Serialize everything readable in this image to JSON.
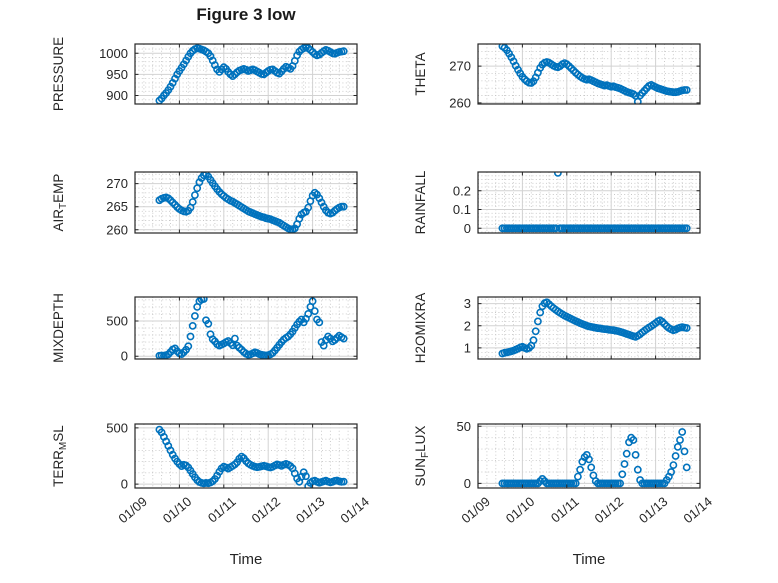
{
  "figure": {
    "title": "Figure 3 low"
  },
  "colors": {
    "marker": "#0072BD",
    "axis": "#262626",
    "grid": "#d2d2d2",
    "minor_grid": "#c7c7c7",
    "text": "#262626",
    "background": "#ffffff"
  },
  "chart_data": {
    "type": "scatter",
    "marker": "open-circle",
    "x_label": "Time",
    "xlim": [
      9,
      14
    ],
    "x_tick_values": [
      9,
      10,
      11,
      12,
      13,
      14
    ],
    "x_tick_labels": [
      "01/09",
      "01/10",
      "01/11",
      "01/12",
      "01/13",
      "01/14"
    ],
    "grid": "major-solid minor-dotted",
    "x": [
      9.55,
      9.6,
      9.65,
      9.7,
      9.75,
      9.8,
      9.85,
      9.9,
      9.95,
      10.0,
      10.05,
      10.1,
      10.15,
      10.2,
      10.25,
      10.3,
      10.35,
      10.4,
      10.45,
      10.5,
      10.55,
      10.6,
      10.65,
      10.7,
      10.75,
      10.8,
      10.85,
      10.9,
      10.95,
      11.0,
      11.05,
      11.1,
      11.15,
      11.2,
      11.25,
      11.3,
      11.35,
      11.4,
      11.45,
      11.5,
      11.55,
      11.6,
      11.65,
      11.7,
      11.75,
      11.8,
      11.85,
      11.9,
      11.95,
      12.0,
      12.05,
      12.1,
      12.15,
      12.2,
      12.25,
      12.3,
      12.35,
      12.4,
      12.45,
      12.5,
      12.55,
      12.6,
      12.65,
      12.7,
      12.75,
      12.8,
      12.85,
      12.9,
      12.95,
      13.0,
      13.05,
      13.1,
      13.15,
      13.2,
      13.25,
      13.3,
      13.35,
      13.4,
      13.45,
      13.5,
      13.55,
      13.6,
      13.65,
      13.7
    ],
    "subplots": [
      {
        "name": "PRESSURE",
        "row": 0,
        "col": 0,
        "ylabel": [
          {
            "text": "PRESSURE"
          }
        ],
        "ylim": [
          880,
          1022
        ],
        "yticks": [
          900,
          950,
          1000
        ],
        "y": [
          888,
          893,
          900,
          906,
          913,
          921,
          930,
          940,
          950,
          958,
          966,
          974,
          983,
          992,
          1000,
          1006,
          1010,
          1012,
          1011,
          1009,
          1007,
          1004,
          1000,
          993,
          983,
          972,
          962,
          956,
          962,
          967,
          963,
          956,
          950,
          946,
          950,
          955,
          959,
          961,
          963,
          961,
          958,
          960,
          962,
          960,
          957,
          954,
          951,
          950,
          954,
          958,
          961,
          962,
          958,
          954,
          952,
          957,
          963,
          968,
          966,
          963,
          970,
          982,
          995,
          1004,
          1009,
          1012,
          1014,
          1012,
          1008,
          1003,
          998,
          995,
          997,
          1001,
          1005,
          1008,
          1006,
          1003,
          1000,
          999,
          1001,
          1003,
          1004,
          1005
        ]
      },
      {
        "name": "THETA",
        "row": 0,
        "col": 1,
        "ylabel": [
          {
            "text": "THETA"
          }
        ],
        "ylim": [
          259.7,
          276
        ],
        "yticks": [
          260,
          270
        ],
        "y": [
          275.4,
          275.0,
          274.3,
          273.4,
          272.4,
          271.3,
          270.1,
          269.0,
          268.0,
          267.1,
          266.4,
          265.9,
          265.5,
          265.4,
          265.9,
          266.9,
          268.2,
          269.5,
          270.4,
          270.9,
          271.1,
          270.9,
          270.5,
          270.1,
          269.8,
          269.7,
          270.0,
          270.5,
          270.8,
          270.5,
          270.0,
          269.4,
          268.8,
          268.2,
          267.7,
          267.2,
          266.8,
          266.5,
          266.3,
          266.4,
          266.2,
          265.9,
          265.6,
          265.3,
          265.1,
          264.9,
          264.7,
          264.8,
          264.6,
          264.4,
          264.5,
          264.3,
          264.1,
          263.9,
          263.6,
          263.3,
          263.0,
          262.8,
          262.6,
          262.4,
          261.9,
          260.3,
          262.0,
          262.7,
          263.3,
          264.0,
          264.6,
          264.9,
          264.6,
          264.3,
          264.0,
          263.8,
          263.6,
          263.4,
          263.2,
          263.1,
          263.0,
          262.9,
          262.9,
          263.0,
          263.2,
          263.4,
          263.5,
          263.5
        ]
      },
      {
        "name": "AIR_TEMP",
        "row": 1,
        "col": 0,
        "ylabel": [
          {
            "text": "AIR"
          },
          {
            "text": "T",
            "sub": true
          },
          {
            "text": "EMP"
          }
        ],
        "ylim": [
          259.3,
          272.5
        ],
        "yticks": [
          260,
          265,
          270
        ],
        "y": [
          266.4,
          266.7,
          266.9,
          267.0,
          266.8,
          266.4,
          265.9,
          265.4,
          264.9,
          264.5,
          264.2,
          264.0,
          263.9,
          264.1,
          264.8,
          266.0,
          267.5,
          269.0,
          270.3,
          271.2,
          271.8,
          272.0,
          271.5,
          270.8,
          270.1,
          269.4,
          268.8,
          268.2,
          267.7,
          267.3,
          266.9,
          266.6,
          266.3,
          266.1,
          265.8,
          265.5,
          265.2,
          264.9,
          264.6,
          264.3,
          264.0,
          263.8,
          263.6,
          263.4,
          263.2,
          263.0,
          262.8,
          262.7,
          262.5,
          262.4,
          262.3,
          262.1,
          261.9,
          261.7,
          261.5,
          261.2,
          260.9,
          260.6,
          260.3,
          260.1,
          260.0,
          260.3,
          261.2,
          262.4,
          263.3,
          263.7,
          263.9,
          264.8,
          266.2,
          267.4,
          268.0,
          267.6,
          266.8,
          265.9,
          265.0,
          264.2,
          263.7,
          263.5,
          263.7,
          264.1,
          264.5,
          264.8,
          265.0,
          265.0
        ]
      },
      {
        "name": "RAINFALL",
        "row": 1,
        "col": 1,
        "ylabel": [
          {
            "text": "RAINFALL"
          }
        ],
        "ylim": [
          -0.025,
          0.3
        ],
        "yticks": [
          0,
          0.1,
          0.2
        ],
        "y": [
          0,
          0,
          0,
          0,
          0,
          0,
          0,
          0,
          0,
          0,
          0,
          0,
          0,
          0,
          0,
          0,
          0,
          0,
          0,
          0,
          0,
          0,
          0,
          0,
          0,
          0.295,
          0,
          0,
          0,
          0,
          0,
          0,
          0,
          0,
          0,
          0,
          0,
          0,
          0,
          0,
          0,
          0,
          0,
          0,
          0,
          0,
          0,
          0,
          0,
          0,
          0,
          0,
          0,
          0,
          0,
          0,
          0,
          0,
          0,
          0,
          0,
          0,
          0,
          0,
          0,
          0,
          0,
          0,
          0,
          0,
          0,
          0,
          0,
          0,
          0,
          0,
          0,
          0,
          0,
          0,
          0,
          0,
          0,
          0
        ]
      },
      {
        "name": "MIXDEPTH",
        "row": 2,
        "col": 0,
        "ylabel": [
          {
            "text": "MIXDEPTH"
          }
        ],
        "ylim": [
          -40,
          840
        ],
        "yticks": [
          0,
          500
        ],
        "y": [
          5,
          10,
          8,
          15,
          25,
          60,
          95,
          110,
          70,
          40,
          30,
          55,
          90,
          140,
          280,
          430,
          570,
          700,
          780,
          805,
          812,
          510,
          460,
          310,
          240,
          210,
          170,
          150,
          165,
          180,
          200,
          215,
          185,
          155,
          250,
          150,
          120,
          90,
          60,
          35,
          20,
          25,
          40,
          55,
          45,
          30,
          20,
          15,
          10,
          15,
          25,
          45,
          80,
          120,
          160,
          200,
          235,
          260,
          280,
          310,
          350,
          400,
          450,
          490,
          520,
          480,
          530,
          600,
          700,
          780,
          640,
          520,
          480,
          200,
          150,
          230,
          280,
          250,
          210,
          230,
          260,
          290,
          270,
          250
        ]
      },
      {
        "name": "H2OMIXRA",
        "row": 2,
        "col": 1,
        "ylabel": [
          {
            "text": "H2OMIXRA"
          }
        ],
        "ylim": [
          0.5,
          3.3
        ],
        "yticks": [
          1,
          2,
          3
        ],
        "y": [
          0.75,
          0.78,
          0.8,
          0.82,
          0.85,
          0.88,
          0.92,
          0.97,
          1.02,
          1.05,
          1.0,
          0.96,
          1.0,
          1.1,
          1.35,
          1.75,
          2.2,
          2.6,
          2.88,
          3.02,
          3.06,
          2.98,
          2.88,
          2.8,
          2.72,
          2.65,
          2.58,
          2.52,
          2.46,
          2.41,
          2.36,
          2.31,
          2.26,
          2.21,
          2.17,
          2.12,
          2.08,
          2.04,
          2.0,
          1.97,
          1.95,
          1.93,
          1.91,
          1.89,
          1.88,
          1.86,
          1.85,
          1.84,
          1.82,
          1.81,
          1.8,
          1.78,
          1.76,
          1.73,
          1.7,
          1.67,
          1.63,
          1.6,
          1.56,
          1.53,
          1.5,
          1.55,
          1.62,
          1.7,
          1.78,
          1.85,
          1.92,
          1.98,
          2.05,
          2.12,
          2.2,
          2.25,
          2.18,
          2.08,
          1.98,
          1.9,
          1.84,
          1.8,
          1.83,
          1.88,
          1.92,
          1.94,
          1.92,
          1.9
        ]
      },
      {
        "name": "TERR_MSL",
        "row": 3,
        "col": 0,
        "ylabel": [
          {
            "text": "TERR"
          },
          {
            "text": "M",
            "sub": true
          },
          {
            "text": "SL"
          }
        ],
        "ylim": [
          -35,
          535
        ],
        "yticks": [
          0,
          500
        ],
        "y": [
          485,
          460,
          420,
          380,
          340,
          300,
          262,
          228,
          200,
          178,
          160,
          172,
          165,
          148,
          120,
          90,
          60,
          35,
          18,
          10,
          6,
          10,
          8,
          14,
          25,
          45,
          75,
          110,
          140,
          155,
          148,
          138,
          150,
          162,
          175,
          195,
          225,
          245,
          230,
          205,
          185,
          172,
          162,
          155,
          150,
          153,
          158,
          163,
          158,
          152,
          148,
          154,
          165,
          175,
          170,
          162,
          172,
          180,
          172,
          160,
          140,
          95,
          50,
          20,
          65,
          105,
          70,
          -20,
          10,
          25,
          30,
          20,
          12,
          18,
          25,
          30,
          22,
          15,
          20,
          28,
          32,
          25,
          20,
          22
        ]
      },
      {
        "name": "SUN_FLUX",
        "row": 3,
        "col": 1,
        "ylabel": [
          {
            "text": "SUN"
          },
          {
            "text": "F",
            "sub": true
          },
          {
            "text": "LUX"
          }
        ],
        "ylim": [
          -4,
          52
        ],
        "yticks": [
          0,
          50
        ],
        "y": [
          0,
          0,
          0,
          0,
          0,
          0,
          0,
          0,
          0,
          0,
          0,
          0,
          0,
          0,
          0,
          0,
          0,
          2,
          4,
          2,
          0,
          0,
          0,
          0,
          0,
          0,
          0,
          0,
          0,
          0,
          0,
          0,
          0,
          0,
          6,
          12,
          19,
          23,
          25,
          21,
          14,
          7,
          2,
          0,
          0,
          0,
          0,
          0,
          0,
          0,
          0,
          0,
          0,
          0,
          8,
          17,
          26,
          36,
          40,
          38,
          25,
          12,
          3,
          0,
          0,
          0,
          0,
          0,
          0,
          0,
          0,
          0,
          0,
          0,
          3,
          6,
          10,
          16,
          24,
          32,
          38,
          45,
          28,
          14
        ]
      }
    ]
  }
}
